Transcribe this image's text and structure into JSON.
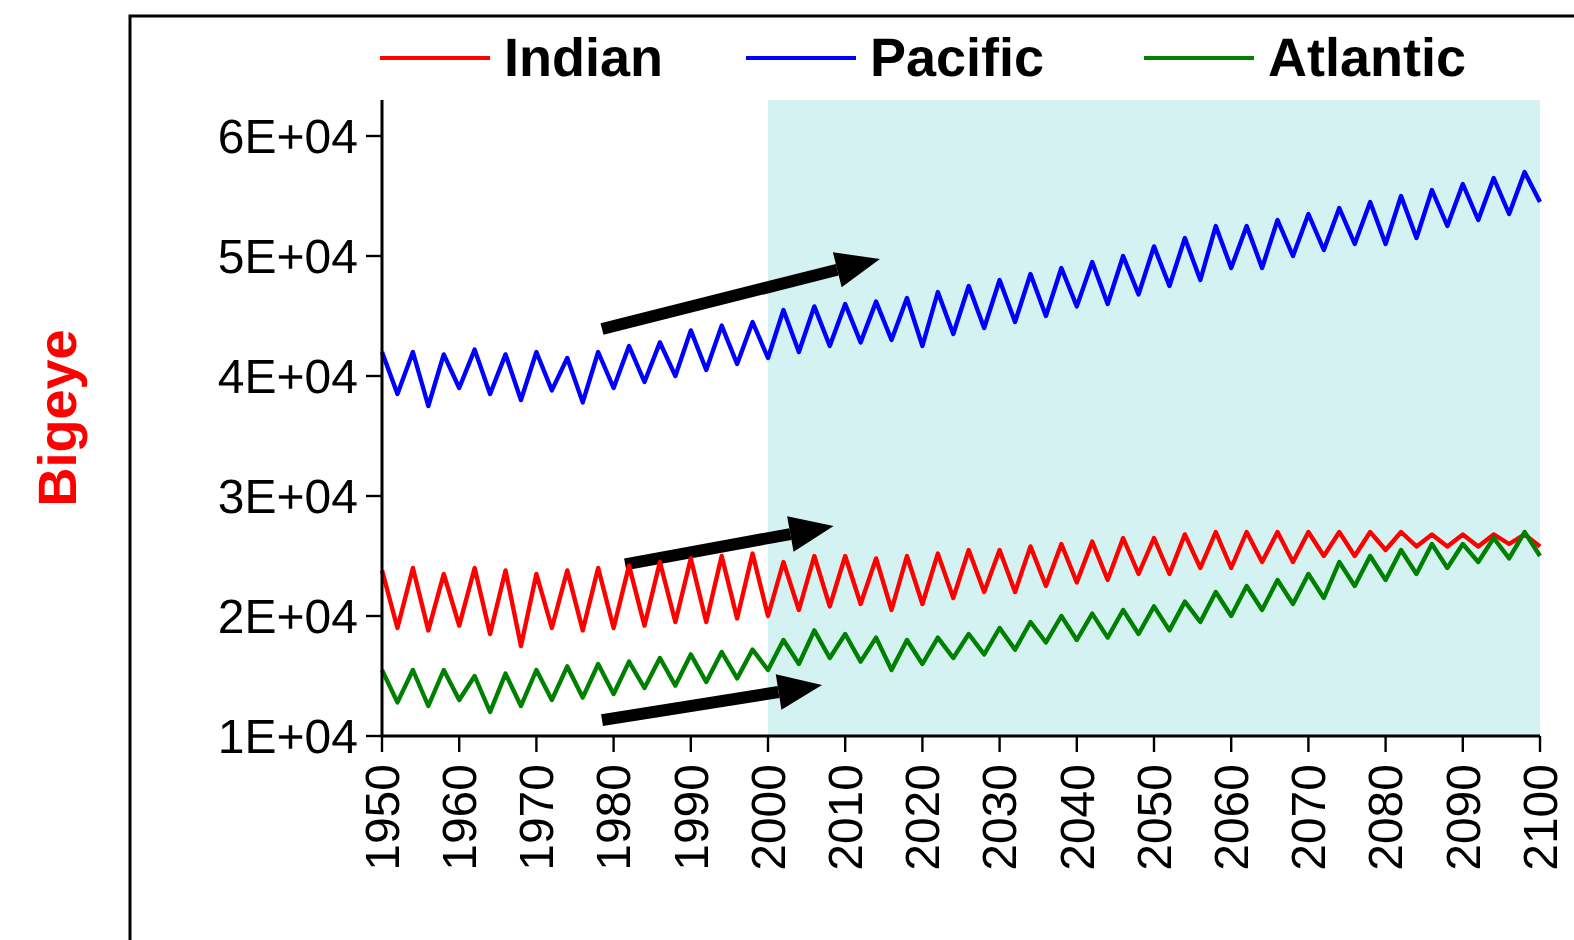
{
  "chart_data": {
    "type": "line",
    "ylabel": "Bigeye",
    "legend": "top",
    "grid": false,
    "marker": "none",
    "line_style": "solid",
    "xlim": [
      1950,
      2100
    ],
    "xticks": [
      1950,
      1960,
      1970,
      1980,
      1990,
      2000,
      2010,
      2020,
      2030,
      2040,
      2050,
      2060,
      2070,
      2080,
      2090,
      2100
    ],
    "ylim": [
      10000,
      63000
    ],
    "yticks": [
      {
        "value": 10000,
        "label": "1E+04"
      },
      {
        "value": 20000,
        "label": "2E+04"
      },
      {
        "value": 30000,
        "label": "3E+04"
      },
      {
        "value": 40000,
        "label": "4E+04"
      },
      {
        "value": 50000,
        "label": "5E+04"
      },
      {
        "value": 60000,
        "label": "6E+04"
      }
    ],
    "x": [
      1950,
      1952,
      1954,
      1956,
      1958,
      1960,
      1962,
      1964,
      1966,
      1968,
      1970,
      1972,
      1974,
      1976,
      1978,
      1980,
      1982,
      1984,
      1986,
      1988,
      1990,
      1992,
      1994,
      1996,
      1998,
      2000,
      2002,
      2004,
      2006,
      2008,
      2010,
      2012,
      2014,
      2016,
      2018,
      2020,
      2022,
      2024,
      2026,
      2028,
      2030,
      2032,
      2034,
      2036,
      2038,
      2040,
      2042,
      2044,
      2046,
      2048,
      2050,
      2052,
      2054,
      2056,
      2058,
      2060,
      2062,
      2064,
      2066,
      2068,
      2070,
      2072,
      2074,
      2076,
      2078,
      2080,
      2082,
      2084,
      2086,
      2088,
      2090,
      2092,
      2094,
      2096,
      2098,
      2100
    ],
    "bands": [
      {
        "axis": "x",
        "from": 2000,
        "to": 2100,
        "color": "#d5f2f2"
      }
    ],
    "series": [
      {
        "name": "Indian",
        "color": "#ff0000",
        "values": [
          23800,
          19000,
          24000,
          18800,
          23500,
          19200,
          24000,
          18500,
          23800,
          17500,
          23500,
          19000,
          23800,
          18800,
          24000,
          19000,
          24200,
          19200,
          24500,
          19500,
          24800,
          19500,
          25000,
          19800,
          25200,
          20000,
          24500,
          20500,
          25000,
          20800,
          25000,
          21000,
          24800,
          20500,
          25000,
          21000,
          25200,
          21500,
          25500,
          22000,
          25500,
          22000,
          25800,
          22500,
          26000,
          22800,
          26200,
          23000,
          26500,
          23500,
          26500,
          23500,
          26800,
          24000,
          27000,
          24000,
          27000,
          24500,
          27000,
          24500,
          27000,
          25000,
          27000,
          25000,
          27000,
          25500,
          27000,
          25800,
          26800,
          25800,
          26800,
          25800,
          26800,
          26000,
          26800,
          25800
        ]
      },
      {
        "name": "Pacific",
        "color": "#0000ff",
        "values": [
          42000,
          38500,
          42000,
          37500,
          41800,
          39000,
          42200,
          38500,
          41800,
          38000,
          42000,
          38800,
          41500,
          37800,
          42000,
          39000,
          42500,
          39500,
          42800,
          40000,
          43800,
          40500,
          44200,
          41000,
          44500,
          41500,
          45500,
          42000,
          45800,
          42500,
          46000,
          42800,
          46200,
          43000,
          46500,
          42500,
          47000,
          43500,
          47500,
          44000,
          48000,
          44500,
          48500,
          45000,
          49000,
          45800,
          49500,
          46000,
          50000,
          46800,
          50800,
          47500,
          51500,
          48000,
          52500,
          49000,
          52500,
          49000,
          53000,
          50000,
          53500,
          50500,
          54000,
          51000,
          54500,
          51000,
          55000,
          51500,
          55500,
          52500,
          56000,
          53000,
          56500,
          53500,
          57000,
          54500
        ]
      },
      {
        "name": "Atlantic",
        "color": "#008000",
        "values": [
          15500,
          12800,
          15500,
          12500,
          15500,
          13000,
          15000,
          12000,
          15200,
          12500,
          15500,
          13000,
          15800,
          13200,
          16000,
          13500,
          16200,
          14000,
          16500,
          14200,
          16800,
          14500,
          17000,
          14800,
          17200,
          15500,
          18000,
          16000,
          18800,
          16500,
          18500,
          16200,
          18200,
          15500,
          18000,
          16000,
          18200,
          16500,
          18500,
          16800,
          19000,
          17200,
          19500,
          17800,
          20000,
          18000,
          20200,
          18200,
          20500,
          18500,
          20800,
          18800,
          21200,
          19500,
          22000,
          20000,
          22500,
          20500,
          23000,
          21000,
          23500,
          21500,
          24500,
          22500,
          25000,
          23000,
          25500,
          23500,
          26000,
          24000,
          26000,
          24500,
          26500,
          24800,
          27000,
          25000
        ]
      }
    ]
  }
}
